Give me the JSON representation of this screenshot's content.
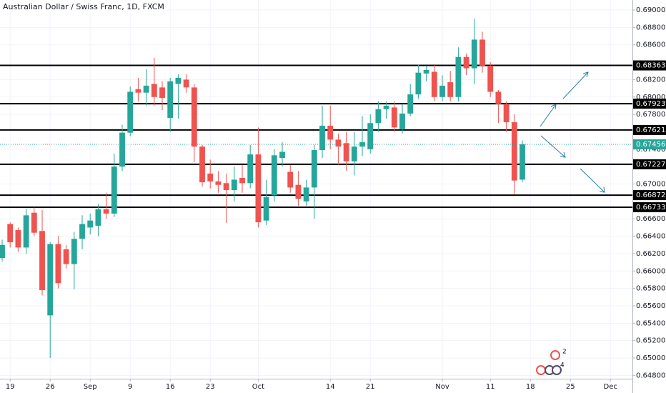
{
  "chart_data": {
    "type": "candlestick",
    "title": "Australian Dollar / Swiss Franc, 1D, FXCM",
    "up_color": "#26a69a",
    "down_color": "#ef5350",
    "level_color": "#000000",
    "grid": true,
    "xlim": [
      -0.27,
      78.75
    ],
    "xticks": [
      {
        "value": 1,
        "label": "19"
      },
      {
        "value": 6,
        "label": "26"
      },
      {
        "value": 11,
        "label": "Sep"
      },
      {
        "value": 16,
        "label": "9"
      },
      {
        "value": 21,
        "label": "16"
      },
      {
        "value": 26,
        "label": "23"
      },
      {
        "value": 32,
        "label": "Oct"
      },
      {
        "value": 41,
        "label": "14"
      },
      {
        "value": 46,
        "label": "21"
      },
      {
        "value": 55,
        "label": "Nov"
      },
      {
        "value": 61,
        "label": "11"
      },
      {
        "value": 66,
        "label": "18"
      },
      {
        "value": 71,
        "label": "25"
      },
      {
        "value": 76,
        "label": "Dec"
      }
    ],
    "ylim": [
      0.64762,
      0.69115
    ],
    "yticks": [
      {
        "value": 0.648,
        "label": "0.64800"
      },
      {
        "value": 0.65,
        "label": "0.65000"
      },
      {
        "value": 0.652,
        "label": "0.65200"
      },
      {
        "value": 0.654,
        "label": "0.65400"
      },
      {
        "value": 0.656,
        "label": "0.65600"
      },
      {
        "value": 0.658,
        "label": "0.65800"
      },
      {
        "value": 0.66,
        "label": "0.66000"
      },
      {
        "value": 0.662,
        "label": "0.66200"
      },
      {
        "value": 0.664,
        "label": "0.66400"
      },
      {
        "value": 0.666,
        "label": "0.66600"
      },
      {
        "value": 0.67,
        "label": "0.67000"
      },
      {
        "value": 0.674,
        "label": "0.67400"
      },
      {
        "value": 0.678,
        "label": "0.67800"
      },
      {
        "value": 0.68,
        "label": "0.68000"
      },
      {
        "value": 0.682,
        "label": "0.68200"
      },
      {
        "value": 0.686,
        "label": "0.68600"
      },
      {
        "value": 0.688,
        "label": "0.68800"
      },
      {
        "value": 0.69,
        "label": "0.69000"
      }
    ],
    "levels": [
      0.68363,
      0.67923,
      0.67621,
      0.67227,
      0.66872,
      0.66733
    ],
    "event_badges": [
      "2",
      "4"
    ],
    "series": {
      "open": [
        0.6615,
        0.6654,
        0.6647,
        0.6627,
        0.6667,
        0.6646,
        0.6549,
        0.6631,
        0.6625,
        0.6608,
        0.6637,
        0.665,
        0.6652,
        0.6671,
        0.6666,
        0.672,
        0.6759,
        0.6809,
        0.6805,
        0.6815,
        0.6811,
        0.6776,
        0.6815,
        0.682,
        0.6811,
        0.6743,
        0.6712,
        0.6703,
        0.6701,
        0.6693,
        0.6707,
        0.6701,
        0.6734,
        0.6658,
        0.6687,
        0.673,
        0.6714,
        0.6699,
        0.668,
        0.6696,
        0.6739,
        0.6767,
        0.6751,
        0.6747,
        0.6726,
        0.6743,
        0.674,
        0.677,
        0.6786,
        0.6788,
        0.6763,
        0.6781,
        0.6803,
        0.6827,
        0.6829,
        0.68,
        0.6817,
        0.68,
        0.6846,
        0.6833,
        0.6866,
        0.6836,
        0.6806,
        0.6792,
        0.6771,
        0.6705
      ],
      "high": [
        0.6636,
        0.6656,
        0.665,
        0.6672,
        0.6673,
        0.667,
        0.6633,
        0.664,
        0.663,
        0.6645,
        0.6664,
        0.6666,
        0.6677,
        0.669,
        0.6735,
        0.6768,
        0.6812,
        0.6822,
        0.6832,
        0.6845,
        0.6818,
        0.6822,
        0.6826,
        0.6826,
        0.6815,
        0.6745,
        0.6728,
        0.6715,
        0.6712,
        0.672,
        0.6722,
        0.6745,
        0.6765,
        0.6705,
        0.674,
        0.6748,
        0.6722,
        0.6715,
        0.6705,
        0.6745,
        0.679,
        0.679,
        0.6758,
        0.676,
        0.676,
        0.6778,
        0.678,
        0.6795,
        0.6795,
        0.6795,
        0.6792,
        0.6815,
        0.6837,
        0.6836,
        0.6838,
        0.6825,
        0.683,
        0.6857,
        0.685,
        0.689,
        0.6875,
        0.684,
        0.6808,
        0.6795,
        0.678,
        0.675
      ],
      "low": [
        0.6611,
        0.6627,
        0.6622,
        0.662,
        0.664,
        0.6572,
        0.65,
        0.658,
        0.6603,
        0.6579,
        0.6625,
        0.6642,
        0.664,
        0.666,
        0.6662,
        0.6715,
        0.6755,
        0.6795,
        0.679,
        0.679,
        0.6785,
        0.676,
        0.6775,
        0.6805,
        0.6725,
        0.6697,
        0.6695,
        0.669,
        0.6655,
        0.668,
        0.669,
        0.6695,
        0.665,
        0.6653,
        0.668,
        0.672,
        0.669,
        0.6675,
        0.6675,
        0.666,
        0.673,
        0.674,
        0.6722,
        0.6715,
        0.671,
        0.6732,
        0.6735,
        0.676,
        0.6775,
        0.676,
        0.6758,
        0.6778,
        0.6798,
        0.6818,
        0.6795,
        0.6795,
        0.6795,
        0.6795,
        0.6825,
        0.6815,
        0.6828,
        0.68,
        0.677,
        0.676,
        0.6688,
        0.6702
      ],
      "close": [
        0.663,
        0.6633,
        0.6627,
        0.6664,
        0.6644,
        0.6578,
        0.6631,
        0.6586,
        0.6608,
        0.6637,
        0.6654,
        0.6658,
        0.6671,
        0.6666,
        0.672,
        0.6759,
        0.6806,
        0.6805,
        0.6813,
        0.68,
        0.6799,
        0.6818,
        0.6822,
        0.6811,
        0.6743,
        0.6702,
        0.6703,
        0.6699,
        0.6693,
        0.6705,
        0.6701,
        0.6734,
        0.6656,
        0.6685,
        0.6733,
        0.6737,
        0.6696,
        0.6683,
        0.6696,
        0.6739,
        0.6767,
        0.6751,
        0.6743,
        0.6726,
        0.6743,
        0.6748,
        0.677,
        0.6786,
        0.679,
        0.6765,
        0.6781,
        0.6803,
        0.6828,
        0.6831,
        0.68,
        0.6813,
        0.68,
        0.6846,
        0.6833,
        0.6866,
        0.6836,
        0.6806,
        0.6792,
        0.6771,
        0.6704,
        0.67456
      ]
    }
  }
}
